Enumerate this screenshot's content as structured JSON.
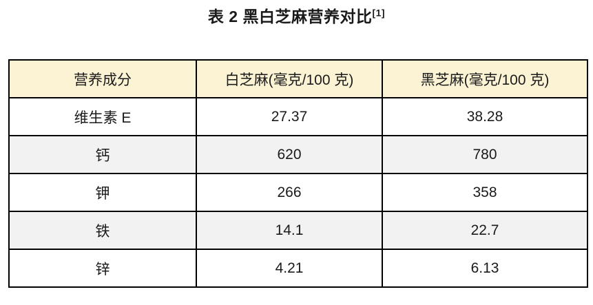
{
  "title": {
    "text": "表 2 黑白芝麻营养对比",
    "citation": "[1]"
  },
  "chart_data": {
    "type": "table",
    "title": "表 2 黑白芝麻营养对比[1]",
    "columns": [
      "营养成分",
      "白芝麻(毫克/100 克)",
      "黑芝麻(毫克/100 克)"
    ],
    "unit": "毫克/100 克",
    "rows": [
      [
        "维生素 E",
        "27.37",
        "38.28"
      ],
      [
        "钙",
        "620",
        "780"
      ],
      [
        "钾",
        "266",
        "358"
      ],
      [
        "铁",
        "14.1",
        "22.7"
      ],
      [
        "锌",
        "4.21",
        "6.13"
      ]
    ],
    "layout": {
      "header_bg": "#fbf3d4",
      "row_bg": "#ffffff",
      "row_alt_bg": "#f2f2f2",
      "border_color": "#000000",
      "text_color": "#1a1a1a"
    }
  }
}
